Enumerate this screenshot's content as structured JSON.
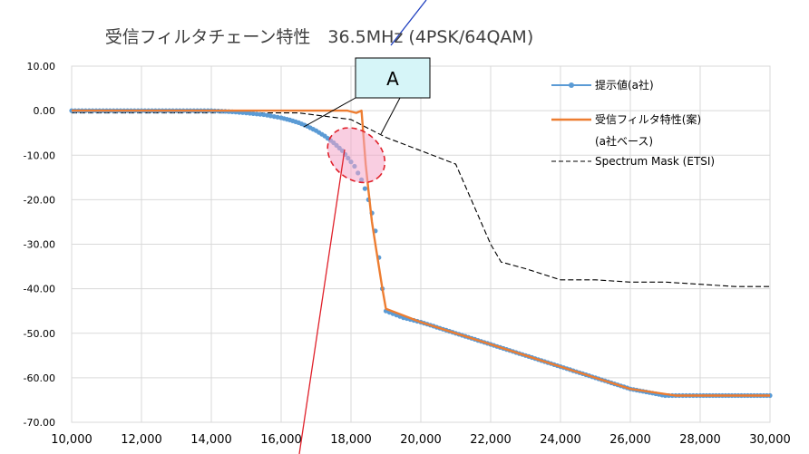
{
  "chart_data": {
    "type": "line",
    "title": "受信フィルタチェーン特性　36.5MHz (4PSK/64QAM)",
    "xlim": [
      10000,
      30000
    ],
    "ylim": [
      -70,
      10
    ],
    "x_ticks": [
      "10,000",
      "12,000",
      "14,000",
      "16,000",
      "18,000",
      "20,000",
      "22,000",
      "24,000",
      "26,000",
      "28,000",
      "30,000"
    ],
    "y_ticks": [
      "10.00",
      "0.00",
      "-10.00",
      "-20.00",
      "-30.00",
      "-40.00",
      "-50.00",
      "-60.00",
      "-70.00"
    ],
    "grid": true,
    "legend_position": "right",
    "series": [
      {
        "name": "提示値(a社)",
        "color": "#5b9bd5",
        "style": "markers",
        "x": [
          10000,
          10500,
          11000,
          11500,
          12000,
          12500,
          13000,
          13500,
          14000,
          14500,
          15000,
          15500,
          16000,
          16250,
          16500,
          16750,
          17000,
          17250,
          17500,
          17750,
          18000,
          18100,
          18200,
          18300,
          18400,
          18500,
          18600,
          18700,
          18800,
          18900,
          19000,
          19500,
          20000,
          21000,
          22000,
          23000,
          24000,
          25000,
          26000,
          27000,
          27300,
          28000,
          29000,
          30000
        ],
        "y": [
          0,
          0,
          0,
          0,
          0,
          0,
          0,
          0,
          0,
          -0.2,
          -0.5,
          -0.9,
          -1.6,
          -2.1,
          -2.7,
          -3.5,
          -4.5,
          -5.7,
          -7.2,
          -9,
          -11.5,
          -12.5,
          -14,
          -15.5,
          -17.5,
          -20,
          -23,
          -27,
          -33,
          -40,
          -45,
          -46.5,
          -47.5,
          -50,
          -52.5,
          -55,
          -57.5,
          -60,
          -62.5,
          -64,
          -64,
          -64,
          -64,
          -64
        ]
      },
      {
        "name": "受信フィルタ特性(案)",
        "name2": "(a社ベース)",
        "color": "#ed7d31",
        "style": "line",
        "x": [
          10000,
          14500,
          17500,
          17900,
          18150,
          18300,
          18350,
          18420,
          18500,
          18600,
          18700,
          18900,
          19000,
          20000,
          21000,
          22000,
          23000,
          24000,
          25000,
          26000,
          27300,
          30000
        ],
        "y": [
          0,
          0,
          0,
          0,
          -0.5,
          0,
          -5,
          -12,
          -18,
          -25,
          -30,
          -40,
          -44.5,
          -47.5,
          -50,
          -52.5,
          -55,
          -57.5,
          -60,
          -62.5,
          -64,
          -64
        ]
      },
      {
        "name": "Spectrum Mask (ETSI)",
        "color": "#000000",
        "style": "dashed",
        "x": [
          10000,
          16500,
          18000,
          19000,
          20000,
          21000,
          22000,
          22300,
          23000,
          24000,
          25000,
          26000,
          27000,
          28000,
          29000,
          30000
        ],
        "y": [
          -0.5,
          -0.5,
          -2,
          -6,
          -9,
          -12,
          -30,
          -34,
          -35.5,
          -38,
          -38,
          -38.5,
          -38.5,
          -39,
          -39.5,
          -39.5
        ]
      }
    ],
    "annotation": {
      "label": "A",
      "ellipse_center": [
        18150,
        -10
      ],
      "ellipse_rx_data": 900,
      "ellipse_ry_data": 5.4
    }
  }
}
